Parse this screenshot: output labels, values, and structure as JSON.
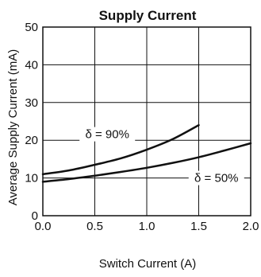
{
  "chart_data": {
    "type": "line",
    "title": "Supply Current",
    "xlabel": "Switch Current (A)",
    "ylabel": "Average Supply Current (mA)",
    "xlim": [
      0.0,
      2.0
    ],
    "ylim": [
      0,
      50
    ],
    "x_ticks": [
      "0.0",
      "0.5",
      "1.0",
      "1.5",
      "2.0"
    ],
    "y_ticks": [
      "0",
      "10",
      "20",
      "30",
      "40",
      "50"
    ],
    "grid": true,
    "series": [
      {
        "name": "δ = 90%",
        "x": [
          0.0,
          0.25,
          0.5,
          0.75,
          1.0,
          1.25,
          1.5
        ],
        "y": [
          11.0,
          12.0,
          13.5,
          15.2,
          17.5,
          20.3,
          24.0
        ]
      },
      {
        "name": "δ = 50%",
        "x": [
          0.0,
          0.25,
          0.5,
          0.75,
          1.0,
          1.25,
          1.5,
          1.75,
          2.0
        ],
        "y": [
          9.0,
          9.7,
          10.6,
          11.6,
          12.7,
          14.0,
          15.5,
          17.3,
          19.2
        ]
      }
    ],
    "annotations": [
      "δ = 90%",
      "δ = 50%"
    ]
  }
}
